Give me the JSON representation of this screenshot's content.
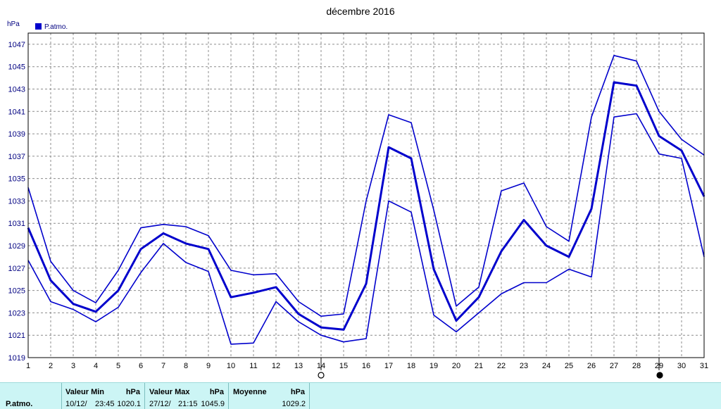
{
  "chart_data": {
    "type": "line",
    "title": "décembre 2016",
    "unit": "hPa",
    "legend": "P.atmo.",
    "legend_placement": "top-left",
    "grid": true,
    "ylim": [
      1019,
      1048
    ],
    "yticks": [
      1019,
      1021,
      1023,
      1025,
      1027,
      1029,
      1031,
      1033,
      1035,
      1037,
      1039,
      1041,
      1043,
      1045,
      1047
    ],
    "x": [
      1,
      2,
      3,
      4,
      5,
      6,
      7,
      8,
      9,
      10,
      11,
      12,
      13,
      14,
      15,
      16,
      17,
      18,
      19,
      20,
      21,
      22,
      23,
      24,
      25,
      26,
      27,
      28,
      29,
      30,
      31
    ],
    "series": [
      {
        "line": "max",
        "values": [
          1034.2,
          1027.6,
          1025.0,
          1023.9,
          1026.8,
          1030.6,
          1030.9,
          1030.7,
          1029.9,
          1026.8,
          1026.4,
          1026.5,
          1024.0,
          1022.7,
          1022.9,
          1033.0,
          1040.7,
          1040.0,
          1032.2,
          1023.6,
          1025.3,
          1033.9,
          1034.6,
          1030.7,
          1029.4,
          1040.5,
          1046.0,
          1045.5,
          1041.0,
          1038.5,
          1037.1
        ]
      },
      {
        "line": "mean",
        "values": [
          1030.6,
          1025.9,
          1023.8,
          1023.1,
          1025.0,
          1028.7,
          1030.1,
          1029.2,
          1028.7,
          1024.4,
          1024.8,
          1025.3,
          1022.9,
          1021.7,
          1021.5,
          1025.6,
          1037.8,
          1036.8,
          1026.9,
          1022.3,
          1024.4,
          1028.5,
          1031.3,
          1029.0,
          1028.0,
          1032.3,
          1043.6,
          1043.3,
          1038.8,
          1037.5,
          1033.4
        ]
      },
      {
        "line": "min",
        "values": [
          1027.7,
          1024.0,
          1023.3,
          1022.2,
          1023.5,
          1026.6,
          1029.2,
          1027.5,
          1026.7,
          1020.2,
          1020.3,
          1024.0,
          1022.2,
          1021.0,
          1020.4,
          1020.7,
          1033.0,
          1032.0,
          1022.8,
          1021.3,
          1023.0,
          1024.7,
          1025.7,
          1025.7,
          1026.9,
          1026.2,
          1040.5,
          1040.8,
          1037.2,
          1036.8,
          1028.0
        ]
      }
    ],
    "moon_markers": [
      {
        "x": 14,
        "phase": "full"
      },
      {
        "x": 29,
        "phase": "new"
      }
    ],
    "colors": {
      "series": "#0000cc",
      "grid": "#8c8c8c",
      "axis_text": "#000080",
      "stats_bg": "#ccf5f5"
    }
  },
  "stats": {
    "row_label": "P.atmo.",
    "min": {
      "header": "Valeur Min",
      "unit": "hPa",
      "date": "10/12/",
      "time": "23:45",
      "value": "1020.1"
    },
    "max": {
      "header": "Valeur Max",
      "unit": "hPa",
      "date": "27/12/",
      "time": "21:15",
      "value": "1045.9"
    },
    "mean": {
      "header": "Moyenne",
      "unit": "hPa",
      "value": "1029.2"
    }
  }
}
